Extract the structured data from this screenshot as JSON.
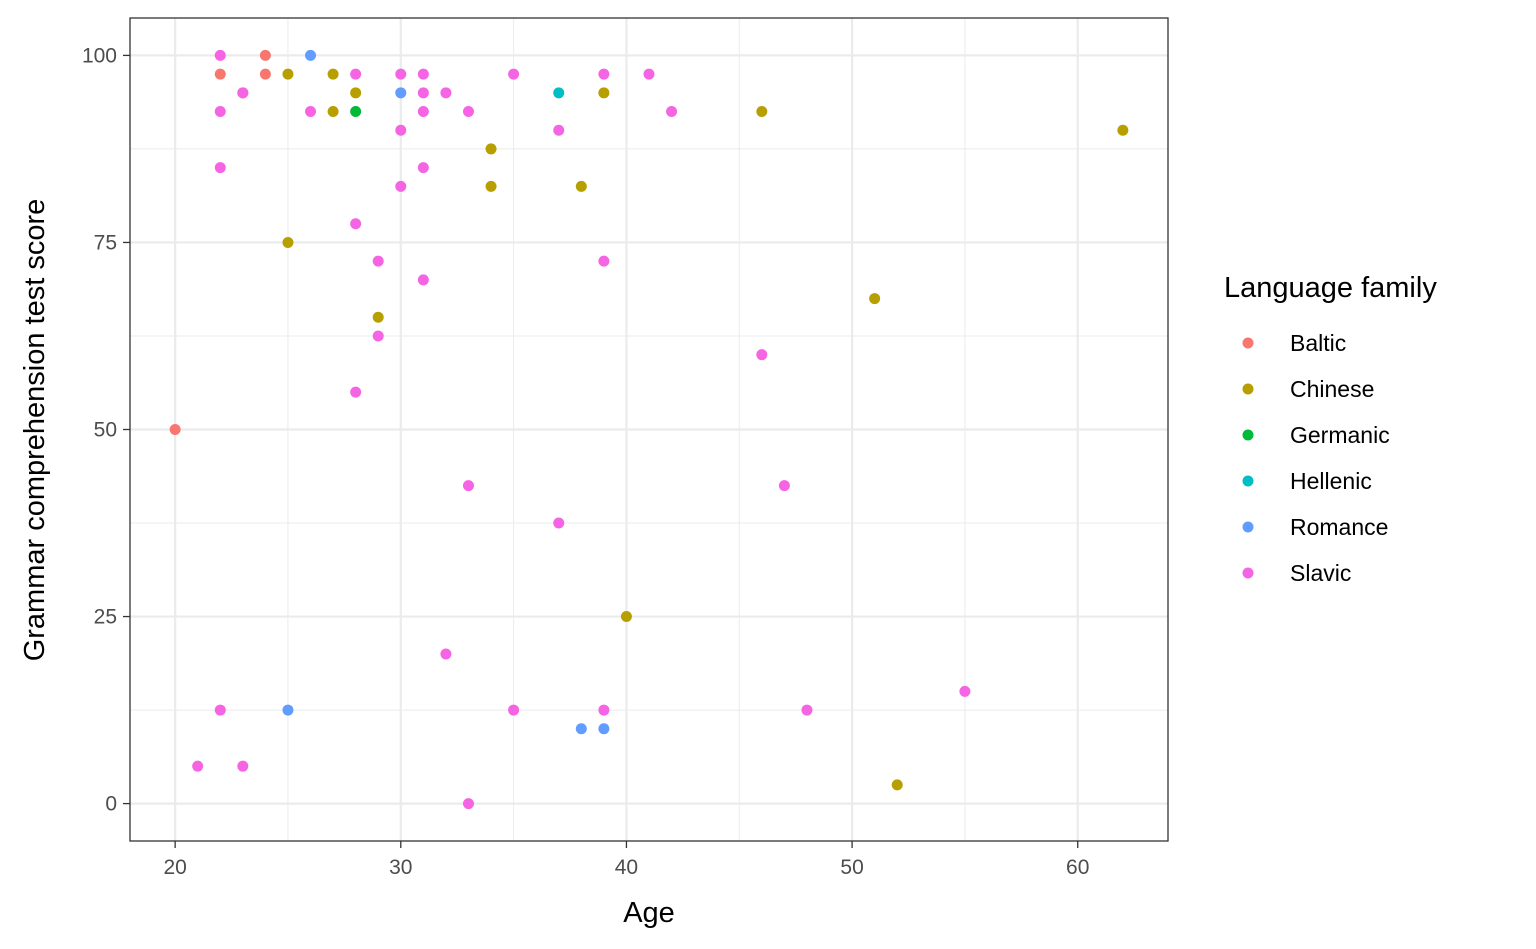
{
  "chart_data": {
    "type": "scatter",
    "xlabel": "Age",
    "ylabel": "Grammar comprehension test score",
    "xlim": [
      18,
      64
    ],
    "ylim": [
      -5,
      105
    ],
    "x_ticks": [
      20,
      30,
      40,
      50,
      60
    ],
    "y_ticks": [
      0,
      25,
      50,
      75,
      100
    ],
    "grid": true,
    "legend": {
      "title": "Language family",
      "position": "right"
    },
    "series": [
      {
        "name": "Baltic",
        "color": "#F8766D",
        "points": [
          [
            20,
            50
          ],
          [
            22,
            97.5
          ],
          [
            23,
            95
          ],
          [
            24,
            100
          ],
          [
            24,
            97.5
          ]
        ]
      },
      {
        "name": "Chinese",
        "color": "#B79F00",
        "points": [
          [
            25,
            97.5
          ],
          [
            25,
            75
          ],
          [
            27,
            97.5
          ],
          [
            27,
            92.5
          ],
          [
            28,
            95
          ],
          [
            29,
            65
          ],
          [
            34,
            87.5
          ],
          [
            34,
            82.5
          ],
          [
            38,
            82.5
          ],
          [
            39,
            95
          ],
          [
            40,
            25
          ],
          [
            46,
            92.5
          ],
          [
            51,
            67.5
          ],
          [
            52,
            2.5
          ],
          [
            62,
            90
          ]
        ]
      },
      {
        "name": "Germanic",
        "color": "#00BA38",
        "points": [
          [
            28,
            92.5
          ]
        ]
      },
      {
        "name": "Hellenic",
        "color": "#00BFC4",
        "points": [
          [
            37,
            95
          ]
        ]
      },
      {
        "name": "Romance",
        "color": "#619CFF",
        "points": [
          [
            25,
            12.5
          ],
          [
            26,
            100
          ],
          [
            30,
            95
          ],
          [
            38,
            10
          ],
          [
            39,
            10
          ]
        ]
      },
      {
        "name": "Slavic",
        "color": "#F564E3",
        "points": [
          [
            21,
            5
          ],
          [
            22,
            100
          ],
          [
            22,
            92.5
          ],
          [
            22,
            85
          ],
          [
            22,
            12.5
          ],
          [
            23,
            95
          ],
          [
            23,
            5
          ],
          [
            26,
            92.5
          ],
          [
            28,
            97.5
          ],
          [
            28,
            77.5
          ],
          [
            28,
            55
          ],
          [
            29,
            72.5
          ],
          [
            29,
            62.5
          ],
          [
            30,
            97.5
          ],
          [
            30,
            90
          ],
          [
            30,
            82.5
          ],
          [
            31,
            97.5
          ],
          [
            31,
            95
          ],
          [
            31,
            92.5
          ],
          [
            31,
            85
          ],
          [
            31,
            70
          ],
          [
            32,
            95
          ],
          [
            32,
            20
          ],
          [
            33,
            92.5
          ],
          [
            33,
            42.5
          ],
          [
            33,
            0
          ],
          [
            35,
            97.5
          ],
          [
            35,
            12.5
          ],
          [
            37,
            90
          ],
          [
            37,
            37.5
          ],
          [
            39,
            97.5
          ],
          [
            39,
            72.5
          ],
          [
            39,
            12.5
          ],
          [
            41,
            97.5
          ],
          [
            42,
            92.5
          ],
          [
            46,
            60
          ],
          [
            47,
            42.5
          ],
          [
            48,
            12.5
          ],
          [
            55,
            15
          ]
        ]
      }
    ]
  }
}
